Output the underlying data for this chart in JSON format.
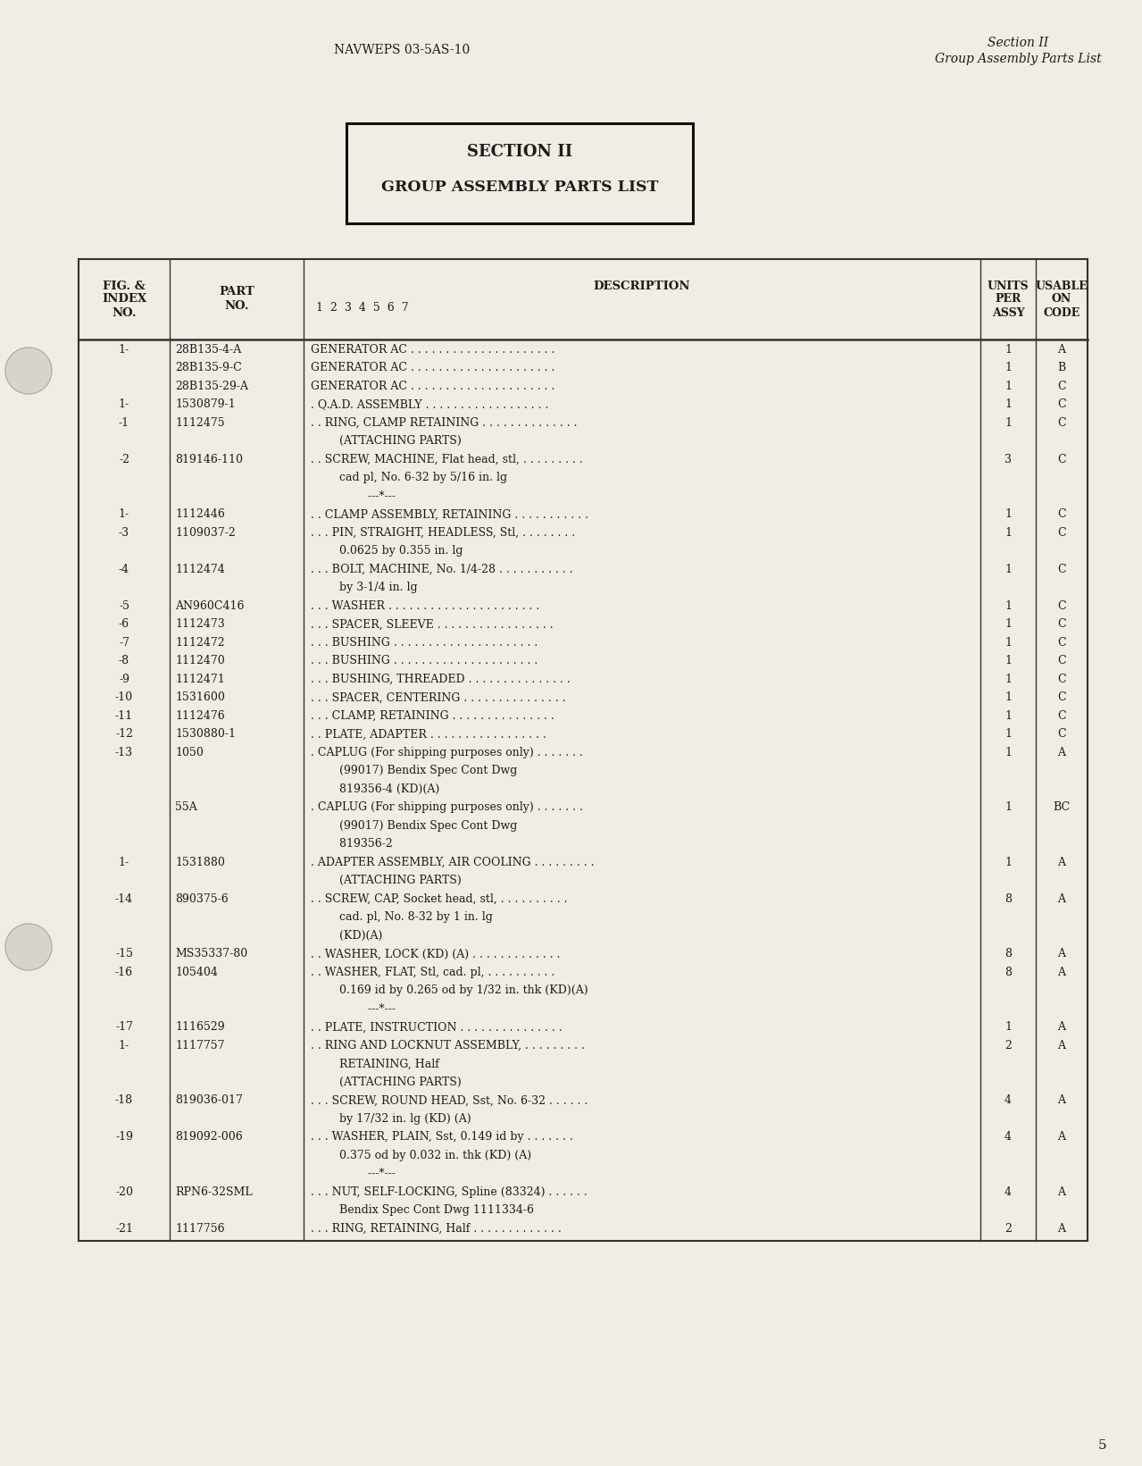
{
  "page_color": "#f0ede4",
  "header_left": "NAVWEPS 03-5AS-10",
  "header_right_line1": "Section II",
  "header_right_line2": "Group Assembly Parts List",
  "section_box_line1": "SECTION II",
  "section_box_line2": "GROUP ASSEMBLY PARTS LIST",
  "rows": [
    {
      "fig": "1-",
      "part": "28B135-4-A",
      "desc": "GENERATOR AC . . . . . . . . . . . . . . . . . . . . .",
      "qty": "1",
      "code": "A"
    },
    {
      "fig": "",
      "part": "28B135-9-C",
      "desc": "GENERATOR AC . . . . . . . . . . . . . . . . . . . . .",
      "qty": "1",
      "code": "B"
    },
    {
      "fig": "",
      "part": "28B135-29-A",
      "desc": "GENERATOR AC . . . . . . . . . . . . . . . . . . . . .",
      "qty": "1",
      "code": "C"
    },
    {
      "fig": "1-",
      "part": "1530879-1",
      "desc": ". Q.A.D. ASSEMBLY . . . . . . . . . . . . . . . . . .",
      "qty": "1",
      "code": "C"
    },
    {
      "fig": "-1",
      "part": "1112475",
      "desc": ". . RING, CLAMP RETAINING . . . . . . . . . . . . . .",
      "qty": "1",
      "code": "C"
    },
    {
      "fig": "",
      "part": "",
      "desc": "        (ATTACHING PARTS)",
      "qty": "",
      "code": ""
    },
    {
      "fig": "-2",
      "part": "819146-110",
      "desc": ". . SCREW, MACHINE, Flat head, stl, . . . . . . . . .",
      "qty": "3",
      "code": "C"
    },
    {
      "fig": "",
      "part": "",
      "desc": "        cad pl, No. 6-32 by 5/16 in. lg",
      "qty": "",
      "code": ""
    },
    {
      "fig": "",
      "part": "",
      "desc": "                ---*---",
      "qty": "",
      "code": ""
    },
    {
      "fig": "1-",
      "part": "1112446",
      "desc": ". . CLAMP ASSEMBLY, RETAINING . . . . . . . . . . .",
      "qty": "1",
      "code": "C"
    },
    {
      "fig": "-3",
      "part": "1109037-2",
      "desc": ". . . PIN, STRAIGHT, HEADLESS, Stl, . . . . . . . .",
      "qty": "1",
      "code": "C"
    },
    {
      "fig": "",
      "part": "",
      "desc": "        0.0625 by 0.355 in. lg",
      "qty": "",
      "code": ""
    },
    {
      "fig": "-4",
      "part": "1112474",
      "desc": ". . . BOLT, MACHINE, No. 1/4-28 . . . . . . . . . . .",
      "qty": "1",
      "code": "C"
    },
    {
      "fig": "",
      "part": "",
      "desc": "        by 3-1/4 in. lg",
      "qty": "",
      "code": ""
    },
    {
      "fig": "-5",
      "part": "AN960C416",
      "desc": ". . . WASHER . . . . . . . . . . . . . . . . . . . . . .",
      "qty": "1",
      "code": "C"
    },
    {
      "fig": "-6",
      "part": "1112473",
      "desc": ". . . SPACER, SLEEVE . . . . . . . . . . . . . . . . .",
      "qty": "1",
      "code": "C"
    },
    {
      "fig": "-7",
      "part": "1112472",
      "desc": ". . . BUSHING . . . . . . . . . . . . . . . . . . . . .",
      "qty": "1",
      "code": "C"
    },
    {
      "fig": "-8",
      "part": "1112470",
      "desc": ". . . BUSHING . . . . . . . . . . . . . . . . . . . . .",
      "qty": "1",
      "code": "C"
    },
    {
      "fig": "-9",
      "part": "1112471",
      "desc": ". . . BUSHING, THREADED . . . . . . . . . . . . . . .",
      "qty": "1",
      "code": "C"
    },
    {
      "fig": "-10",
      "part": "1531600",
      "desc": ". . . SPACER, CENTERING . . . . . . . . . . . . . . .",
      "qty": "1",
      "code": "C"
    },
    {
      "fig": "-11",
      "part": "1112476",
      "desc": ". . . CLAMP, RETAINING . . . . . . . . . . . . . . .",
      "qty": "1",
      "code": "C"
    },
    {
      "fig": "-12",
      "part": "1530880-1",
      "desc": ". . PLATE, ADAPTER . . . . . . . . . . . . . . . . .",
      "qty": "1",
      "code": "C"
    },
    {
      "fig": "-13",
      "part": "1050",
      "desc": ". CAPLUG (For shipping purposes only) . . . . . . .",
      "qty": "1",
      "code": "A"
    },
    {
      "fig": "",
      "part": "",
      "desc": "        (99017) Bendix Spec Cont Dwg",
      "qty": "",
      "code": ""
    },
    {
      "fig": "",
      "part": "",
      "desc": "        819356-4 (KD)(A)",
      "qty": "",
      "code": ""
    },
    {
      "fig": "",
      "part": "55A",
      "desc": ". CAPLUG (For shipping purposes only) . . . . . . .",
      "qty": "1",
      "code": "BC"
    },
    {
      "fig": "",
      "part": "",
      "desc": "        (99017) Bendix Spec Cont Dwg",
      "qty": "",
      "code": ""
    },
    {
      "fig": "",
      "part": "",
      "desc": "        819356-2",
      "qty": "",
      "code": ""
    },
    {
      "fig": "1-",
      "part": "1531880",
      "desc": ". ADAPTER ASSEMBLY, AIR COOLING . . . . . . . . .",
      "qty": "1",
      "code": "A"
    },
    {
      "fig": "",
      "part": "",
      "desc": "        (ATTACHING PARTS)",
      "qty": "",
      "code": ""
    },
    {
      "fig": "-14",
      "part": "890375-6",
      "desc": ". . SCREW, CAP, Socket head, stl, . . . . . . . . . .",
      "qty": "8",
      "code": "A"
    },
    {
      "fig": "",
      "part": "",
      "desc": "        cad. pl, No. 8-32 by 1 in. lg",
      "qty": "",
      "code": ""
    },
    {
      "fig": "",
      "part": "",
      "desc": "        (KD)(A)",
      "qty": "",
      "code": ""
    },
    {
      "fig": "-15",
      "part": "MS35337-80",
      "desc": ". . WASHER, LOCK (KD) (A) . . . . . . . . . . . . .",
      "qty": "8",
      "code": "A"
    },
    {
      "fig": "-16",
      "part": "105404",
      "desc": ". . WASHER, FLAT, Stl, cad. pl, . . . . . . . . . .",
      "qty": "8",
      "code": "A"
    },
    {
      "fig": "",
      "part": "",
      "desc": "        0.169 id by 0.265 od by 1/32 in. thk (KD)(A)",
      "qty": "",
      "code": ""
    },
    {
      "fig": "",
      "part": "",
      "desc": "                ---*---",
      "qty": "",
      "code": ""
    },
    {
      "fig": "-17",
      "part": "1116529",
      "desc": ". . PLATE, INSTRUCTION . . . . . . . . . . . . . . .",
      "qty": "1",
      "code": "A"
    },
    {
      "fig": "1-",
      "part": "1117757",
      "desc": ". . RING AND LOCKNUT ASSEMBLY, . . . . . . . . .",
      "qty": "2",
      "code": "A"
    },
    {
      "fig": "",
      "part": "",
      "desc": "        RETAINING, Half",
      "qty": "",
      "code": ""
    },
    {
      "fig": "",
      "part": "",
      "desc": "        (ATTACHING PARTS)",
      "qty": "",
      "code": ""
    },
    {
      "fig": "-18",
      "part": "819036-017",
      "desc": ". . . SCREW, ROUND HEAD, Sst, No. 6-32 . . . . . .",
      "qty": "4",
      "code": "A"
    },
    {
      "fig": "",
      "part": "",
      "desc": "        by 17/32 in. lg (KD) (A)",
      "qty": "",
      "code": ""
    },
    {
      "fig": "-19",
      "part": "819092-006",
      "desc": ". . . WASHER, PLAIN, Sst, 0.149 id by . . . . . . .",
      "qty": "4",
      "code": "A"
    },
    {
      "fig": "",
      "part": "",
      "desc": "        0.375 od by 0.032 in. thk (KD) (A)",
      "qty": "",
      "code": ""
    },
    {
      "fig": "",
      "part": "",
      "desc": "                ---*---",
      "qty": "",
      "code": ""
    },
    {
      "fig": "-20",
      "part": "RPN6-32SML",
      "desc": ". . . NUT, SELF-LOCKING, Spline (83324) . . . . . .",
      "qty": "4",
      "code": "A"
    },
    {
      "fig": "",
      "part": "",
      "desc": "        Bendix Spec Cont Dwg 1111334-6",
      "qty": "",
      "code": ""
    },
    {
      "fig": "-21",
      "part": "1117756",
      "desc": ". . . RING, RETAINING, Half . . . . . . . . . . . . .",
      "qty": "2",
      "code": "A"
    }
  ],
  "page_number": "5",
  "text_color": "#1c1c1c"
}
